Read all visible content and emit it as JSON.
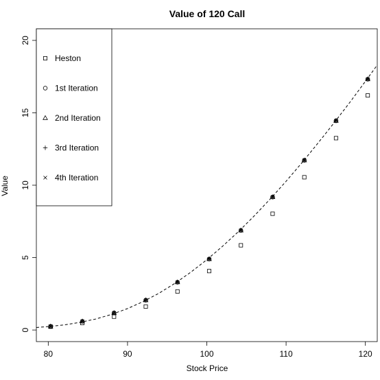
{
  "chart_data": {
    "type": "scatter",
    "title": "Value of 120 Call",
    "xlabel": "Stock Price",
    "ylabel": "Value",
    "xlim": [
      78.5,
      121.5
    ],
    "ylim": [
      -0.8,
      20.8
    ],
    "xticks": [
      80,
      90,
      100,
      110,
      120
    ],
    "yticks": [
      0,
      5,
      10,
      15,
      20
    ],
    "legend_position": "top-left",
    "x": [
      80.3,
      84.3,
      88.3,
      92.3,
      96.3,
      100.3,
      104.3,
      108.3,
      112.3,
      116.3,
      120.3
    ],
    "series": [
      {
        "name": "Heston",
        "marker": "square",
        "values": [
          0.23,
          0.48,
          0.92,
          1.62,
          2.66,
          4.07,
          5.85,
          8.03,
          10.55,
          13.25,
          16.2
        ]
      },
      {
        "name": "1st Iteration",
        "marker": "circle",
        "values": [
          0.25,
          0.6,
          1.18,
          2.06,
          3.3,
          4.9,
          6.88,
          9.18,
          11.72,
          14.45,
          17.32
        ]
      },
      {
        "name": "2nd Iteration",
        "marker": "triangle",
        "values": [
          0.25,
          0.6,
          1.18,
          2.06,
          3.3,
          4.9,
          6.88,
          9.18,
          11.72,
          14.45,
          17.32
        ]
      },
      {
        "name": "3rd Iteration",
        "marker": "plus",
        "values": [
          0.25,
          0.6,
          1.18,
          2.06,
          3.3,
          4.9,
          6.88,
          9.18,
          11.72,
          14.45,
          17.32
        ]
      },
      {
        "name": "4th Iteration",
        "marker": "cross",
        "values": [
          0.25,
          0.6,
          1.18,
          2.06,
          3.3,
          4.9,
          6.88,
          9.18,
          11.72,
          14.45,
          17.32
        ]
      }
    ],
    "curve": {
      "style": "dashed",
      "x": [
        78.5,
        80,
        82,
        84,
        86,
        88,
        90,
        92,
        94,
        96,
        98,
        100,
        102,
        104,
        106,
        108,
        110,
        112,
        114,
        116,
        118,
        120,
        121.5
      ],
      "y": [
        0.17,
        0.24,
        0.35,
        0.53,
        0.76,
        1.08,
        1.48,
        1.97,
        2.55,
        3.23,
        4.0,
        4.85,
        5.79,
        6.8,
        7.89,
        9.05,
        10.27,
        11.55,
        12.89,
        14.27,
        15.69,
        17.17,
        18.3
      ]
    }
  }
}
